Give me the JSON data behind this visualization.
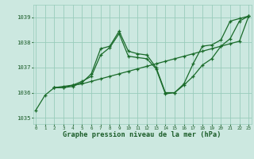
{
  "background_color": "#cce8e0",
  "grid_color": "#99ccbb",
  "line_color": "#1a6b2a",
  "title": "Graphe pression niveau de la mer (hPa)",
  "title_color": "#1a5c28",
  "xlim": [
    -0.3,
    23.3
  ],
  "ylim": [
    1034.75,
    1039.5
  ],
  "yticks": [
    1035,
    1036,
    1037,
    1038,
    1039
  ],
  "xticks": [
    0,
    1,
    2,
    3,
    4,
    5,
    6,
    7,
    8,
    9,
    10,
    11,
    12,
    13,
    14,
    15,
    16,
    17,
    18,
    19,
    20,
    21,
    22,
    23
  ],
  "series": [
    {
      "x": [
        0,
        1,
        2,
        3,
        4,
        5,
        6,
        7,
        8,
        9,
        10,
        11,
        12,
        13,
        14,
        15,
        16,
        17,
        18,
        19,
        20,
        21,
        22,
        23
      ],
      "y": [
        1035.3,
        1035.9,
        1036.2,
        1036.2,
        1036.25,
        1036.4,
        1036.75,
        1037.75,
        1037.85,
        1038.45,
        1037.65,
        1037.55,
        1037.5,
        1037.0,
        1036.0,
        1036.0,
        1036.35,
        1037.15,
        1037.85,
        1037.9,
        1038.1,
        1038.85,
        1038.95,
        1039.05
      ]
    },
    {
      "x": [
        2,
        3,
        4,
        5,
        6,
        7,
        8,
        9,
        10,
        11,
        12,
        13,
        14,
        15,
        16,
        17,
        18,
        19,
        20,
        21,
        22,
        23
      ],
      "y": [
        1036.2,
        1036.2,
        1036.3,
        1036.45,
        1036.65,
        1037.5,
        1037.8,
        1038.35,
        1037.45,
        1037.4,
        1037.35,
        1036.95,
        1035.95,
        1036.0,
        1036.3,
        1036.65,
        1037.1,
        1037.35,
        1037.85,
        1038.15,
        1038.85,
        1039.05
      ]
    },
    {
      "x": [
        2,
        3,
        4,
        5,
        6,
        7,
        8,
        9,
        10,
        11,
        12,
        13,
        14,
        15,
        16,
        17,
        18,
        19,
        20,
        21,
        22,
        23
      ],
      "y": [
        1036.2,
        1036.25,
        1036.3,
        1036.35,
        1036.45,
        1036.55,
        1036.65,
        1036.75,
        1036.85,
        1036.95,
        1037.05,
        1037.15,
        1037.25,
        1037.35,
        1037.45,
        1037.55,
        1037.65,
        1037.75,
        1037.85,
        1037.95,
        1038.05,
        1039.05
      ]
    }
  ]
}
